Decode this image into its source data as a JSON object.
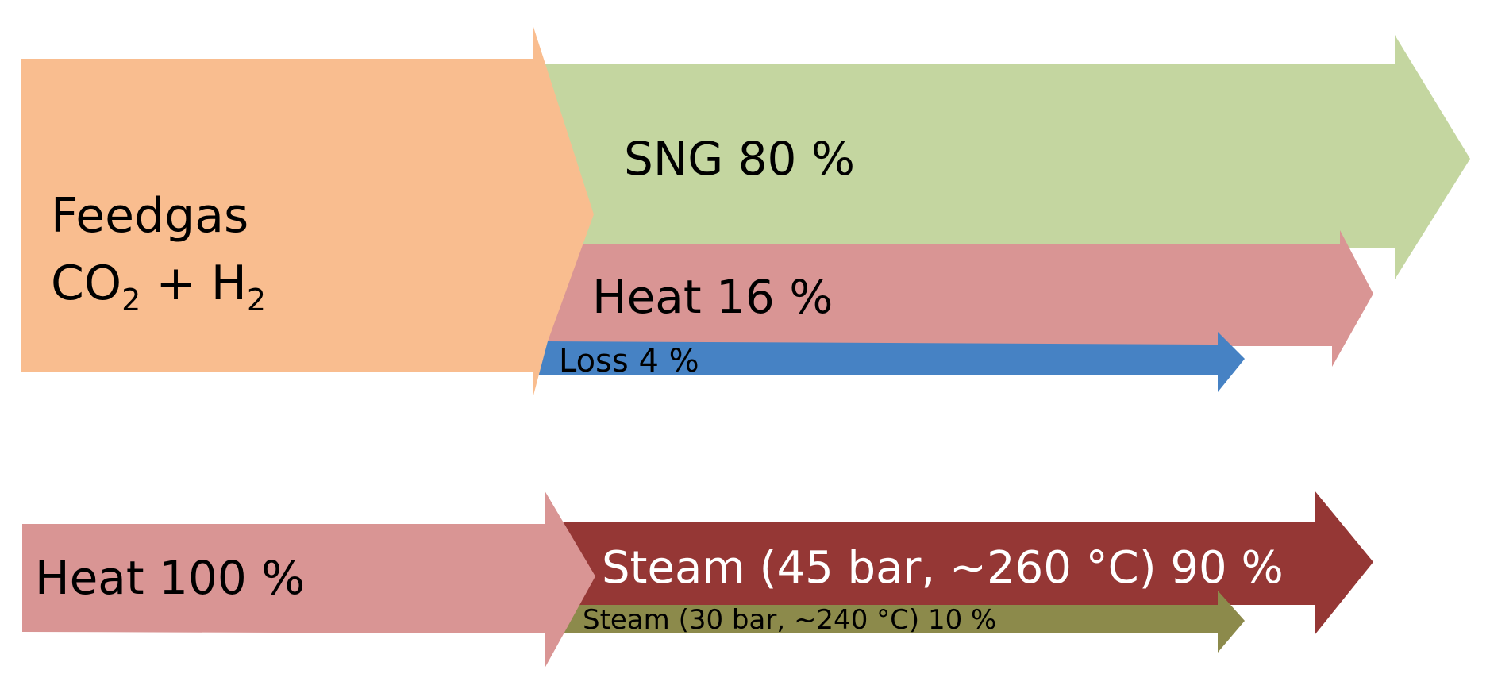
{
  "diagram": {
    "top_flow": {
      "feedgas_label": "Feedgas",
      "feedgas_formula": {
        "co": "CO",
        "sub2a": "2",
        "plus": " + H",
        "sub2b": "2"
      },
      "outputs": [
        {
          "label": "SNG 80 %",
          "color": "#c4d6a0"
        },
        {
          "label": "Heat 16 %",
          "color": "#d99594"
        },
        {
          "label": "Loss 4 %",
          "color": "#4682c4"
        }
      ],
      "input_color": "#f9bd8f"
    },
    "bottom_flow": {
      "input_label": "Heat 100 %",
      "input_color": "#d99594",
      "outputs": [
        {
          "label": "Steam (45 bar, ~260 °C) 90 %",
          "color": "#953735"
        },
        {
          "label": "Steam (30 bar, ~240 °C) 10 %",
          "color": "#8c8a4b"
        }
      ]
    }
  }
}
